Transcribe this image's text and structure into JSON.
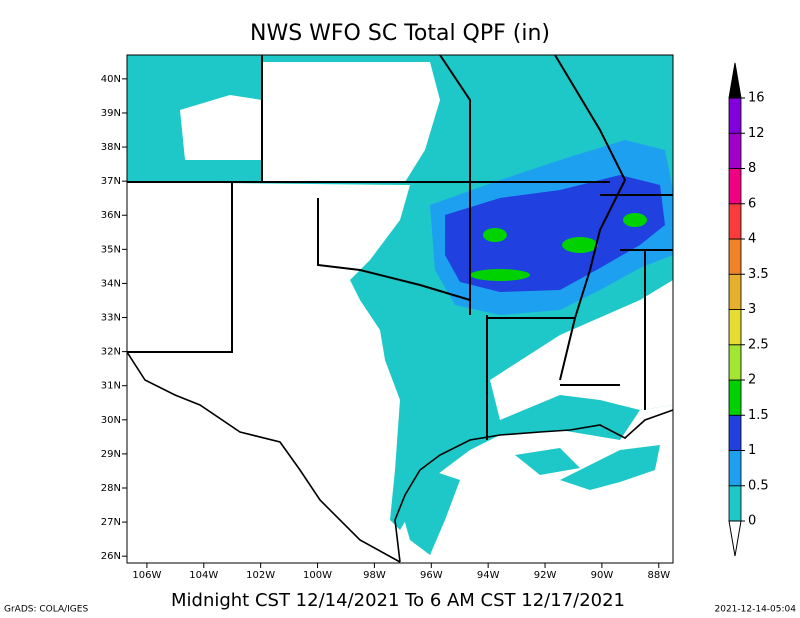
{
  "title": "NWS WFO SC Total QPF (in)",
  "subtitle": "Midnight CST 12/14/2021 To 6 AM CST 12/17/2021",
  "credit": "GrADS: COLA/IGES",
  "timestamp": "2021-12-14-05:04",
  "map": {
    "xlim": [
      -106.7,
      -87.5
    ],
    "ylim": [
      25.8,
      40.7
    ],
    "xticks": [
      {
        "value": -106,
        "label": "106W"
      },
      {
        "value": -104,
        "label": "104W"
      },
      {
        "value": -102,
        "label": "102W"
      },
      {
        "value": -100,
        "label": "100W"
      },
      {
        "value": -98,
        "label": "98W"
      },
      {
        "value": -96,
        "label": "96W"
      },
      {
        "value": -94,
        "label": "94W"
      },
      {
        "value": -92,
        "label": "92W"
      },
      {
        "value": -90,
        "label": "90W"
      },
      {
        "value": -88,
        "label": "88W"
      }
    ],
    "yticks": [
      {
        "value": 26,
        "label": "26N"
      },
      {
        "value": 27,
        "label": "27N"
      },
      {
        "value": 28,
        "label": "28N"
      },
      {
        "value": 29,
        "label": "29N"
      },
      {
        "value": 30,
        "label": "30N"
      },
      {
        "value": 31,
        "label": "31N"
      },
      {
        "value": 32,
        "label": "32N"
      },
      {
        "value": 33,
        "label": "33N"
      },
      {
        "value": 34,
        "label": "34N"
      },
      {
        "value": 35,
        "label": "35N"
      },
      {
        "value": 36,
        "label": "36N"
      },
      {
        "value": 37,
        "label": "37N"
      },
      {
        "value": 38,
        "label": "38N"
      },
      {
        "value": 39,
        "label": "39N"
      },
      {
        "value": 40,
        "label": "40N"
      }
    ]
  },
  "colorbar": {
    "levels": [
      0,
      0.5,
      1,
      1.5,
      2,
      2.5,
      3,
      3.5,
      4,
      6,
      8,
      12,
      16
    ],
    "colors": [
      "#1ec8c8",
      "#1ea0f0",
      "#2040e0",
      "#00d200",
      "#a0e632",
      "#e6dc32",
      "#e6af2d",
      "#f08228",
      "#fa3c3c",
      "#f00082",
      "#a000c8",
      "#8200dc"
    ],
    "over_color": "#000000"
  }
}
